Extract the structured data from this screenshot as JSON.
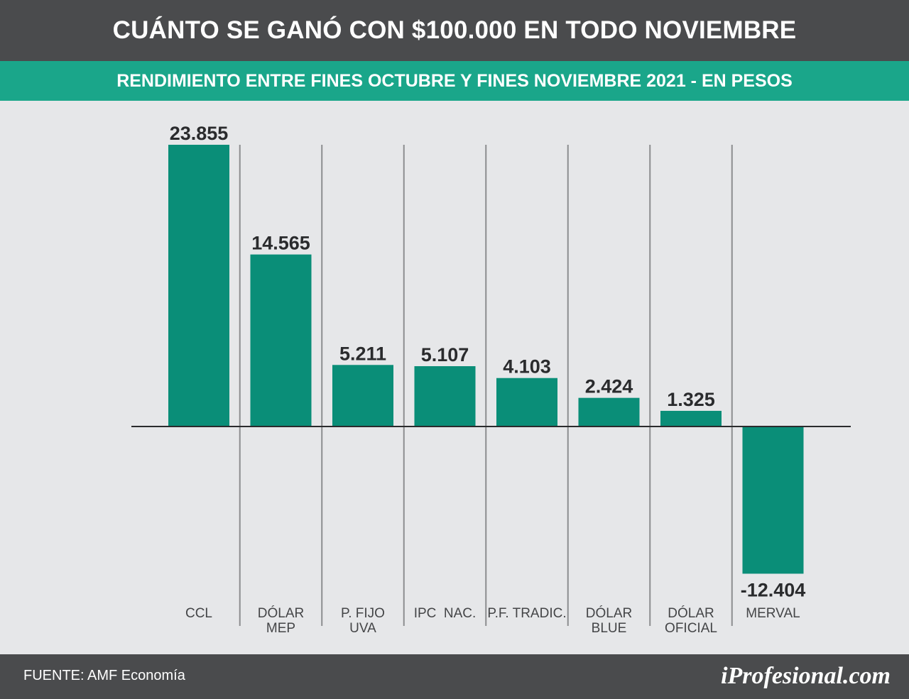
{
  "header": {
    "title": "CUÁNTO SE GANÓ CON $100.000 EN TODO NOVIEMBRE",
    "subtitle": "RENDIMIENTO ENTRE FINES OCTUBRE Y FINES NOVIEMBRE 2021 - EN PESOS"
  },
  "footer": {
    "source": "FUENTE: AMF Economía",
    "brand": "iProfesional.com"
  },
  "colors": {
    "header_bg": "#4a4b4d",
    "subtitle_bg": "#1aa68a",
    "bar": "#0a8e78",
    "bar_highlight": "#03584a",
    "background": "#e6e7e9"
  },
  "chart_data": {
    "type": "bar",
    "title": "CUÁNTO SE GANÓ CON $100.000 EN TODO NOVIEMBRE",
    "subtitle": "RENDIMIENTO ENTRE FINES OCTUBRE Y FINES NOVIEMBRE 2021 - EN PESOS",
    "xlabel": "",
    "ylabel": "",
    "ylim": [
      -12404,
      23855
    ],
    "grid": false,
    "highlight_category": "IPC NAC.",
    "categories": [
      {
        "lines": [
          "CCL"
        ]
      },
      {
        "lines": [
          "DÓLAR",
          "MEP"
        ]
      },
      {
        "lines": [
          "P. FIJO",
          "UVA"
        ]
      },
      {
        "lines": [
          "IPC  NAC."
        ]
      },
      {
        "lines": [
          "P.F. TRADIC."
        ]
      },
      {
        "lines": [
          "DÓLAR",
          "BLUE"
        ]
      },
      {
        "lines": [
          "DÓLAR",
          "OFICIAL"
        ]
      },
      {
        "lines": [
          "MERVAL"
        ]
      }
    ],
    "values": [
      23855,
      14565,
      5211,
      5107,
      4103,
      2424,
      1325,
      -12404
    ],
    "value_labels": [
      "23.855",
      "14.565",
      "5.211",
      "5.107",
      "4.103",
      "2.424",
      "1.325",
      "-12.404"
    ]
  }
}
